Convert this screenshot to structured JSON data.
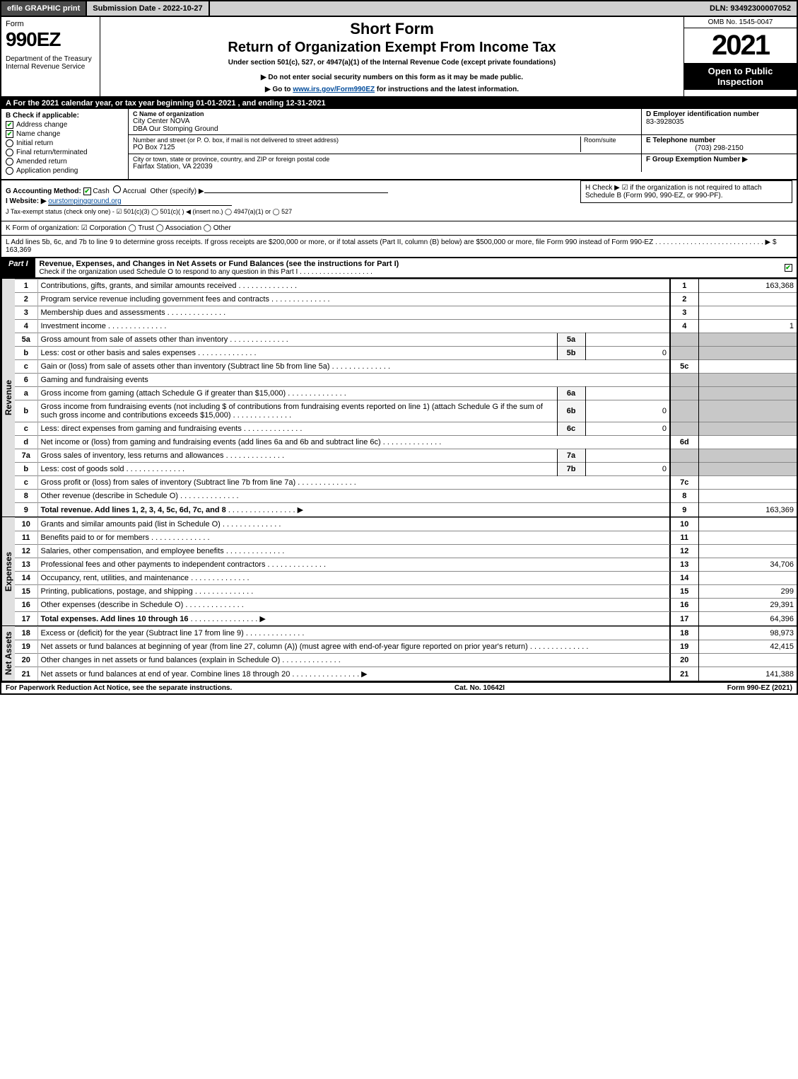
{
  "top": {
    "efile": "efile GRAPHIC print",
    "submission": "Submission Date - 2022-10-27",
    "dln": "DLN: 93492300007052"
  },
  "header": {
    "form_word": "Form",
    "form_num": "990EZ",
    "dept": "Department of the Treasury\nInternal Revenue Service",
    "title1": "Short Form",
    "title2": "Return of Organization Exempt From Income Tax",
    "sub": "Under section 501(c), 527, or 4947(a)(1) of the Internal Revenue Code (except private foundations)",
    "direct1": "▶ Do not enter social security numbers on this form as it may be made public.",
    "direct2_pre": "▶ Go to ",
    "direct2_link": "www.irs.gov/Form990EZ",
    "direct2_post": " for instructions and the latest information.",
    "omb": "OMB No. 1545-0047",
    "year": "2021",
    "inspection": "Open to Public Inspection"
  },
  "row_a": "A  For the 2021 calendar year, or tax year beginning 01-01-2021 , and ending 12-31-2021",
  "b": {
    "label": "B  Check if applicable:",
    "items": [
      {
        "text": "Address change",
        "checked": true
      },
      {
        "text": "Name change",
        "checked": true
      },
      {
        "text": "Initial return",
        "checked": false,
        "shape": "radio"
      },
      {
        "text": "Final return/terminated",
        "checked": false,
        "shape": "radio"
      },
      {
        "text": "Amended return",
        "checked": false,
        "shape": "radio"
      },
      {
        "text": "Application pending",
        "checked": false,
        "shape": "radio"
      }
    ]
  },
  "c": {
    "name_lbl": "C Name of organization",
    "name": "City Center NOVA",
    "dba": "DBA Our Stomping Ground",
    "street_lbl": "Number and street (or P. O. box, if mail is not delivered to street address)",
    "room_lbl": "Room/suite",
    "street": "PO Box 7125",
    "city_lbl": "City or town, state or province, country, and ZIP or foreign postal code",
    "city": "Fairfax Station, VA  22039"
  },
  "right_boxes": {
    "d_lbl": "D Employer identification number",
    "d_val": "83-3928035",
    "e_lbl": "E Telephone number",
    "e_val": "(703) 298-2150",
    "f_lbl": "F Group Exemption Number  ▶"
  },
  "g": {
    "label": "G Accounting Method:",
    "cash": "Cash",
    "accrual": "Accrual",
    "other": "Other (specify) ▶"
  },
  "h": "H  Check ▶ ☑ if the organization is not required to attach Schedule B (Form 990, 990-EZ, or 990-PF).",
  "i": {
    "label": "I Website: ▶",
    "val": "ourstompingground.org"
  },
  "j": "J Tax-exempt status (check only one) - ☑ 501(c)(3)  ◯ 501(c)(  ) ◀ (insert no.)  ◯ 4947(a)(1) or  ◯ 527",
  "k": "K Form of organization:  ☑ Corporation  ◯ Trust  ◯ Association  ◯ Other",
  "l": {
    "text": "L Add lines 5b, 6c, and 7b to line 9 to determine gross receipts. If gross receipts are $200,000 or more, or if total assets (Part II, column (B) below) are $500,000 or more, file Form 990 instead of Form 990-EZ  .  .  .  .  .  .  .  .  .  .  .  .  .  .  .  .  .  .  .  .  .  .  .  .  .  .  .  . ▶ $",
    "val": "163,369"
  },
  "part1": {
    "tag": "Part I",
    "title": "Revenue, Expenses, and Changes in Net Assets or Fund Balances (see the instructions for Part I)",
    "sub": "Check if the organization used Schedule O to respond to any question in this Part I  .  .  .  .  .  .  .  .  .  .  .  .  .  .  .  .  .  .  ."
  },
  "side": {
    "rev": "Revenue",
    "exp": "Expenses",
    "net": "Net Assets"
  },
  "rev": [
    {
      "n": "1",
      "d": "Contributions, gifts, grants, and similar amounts received",
      "rn": "1",
      "rv": "163,368"
    },
    {
      "n": "2",
      "d": "Program service revenue including government fees and contracts",
      "rn": "2",
      "rv": ""
    },
    {
      "n": "3",
      "d": "Membership dues and assessments",
      "rn": "3",
      "rv": ""
    },
    {
      "n": "4",
      "d": "Investment income",
      "rn": "4",
      "rv": "1"
    },
    {
      "n": "5a",
      "d": "Gross amount from sale of assets other than inventory",
      "mn": "5a",
      "mv": ""
    },
    {
      "n": "b",
      "d": "Less: cost or other basis and sales expenses",
      "mn": "5b",
      "mv": "0"
    },
    {
      "n": "c",
      "d": "Gain or (loss) from sale of assets other than inventory (Subtract line 5b from line 5a)",
      "rn": "5c",
      "rv": ""
    },
    {
      "n": "6",
      "d": "Gaming and fundraising events"
    },
    {
      "n": "a",
      "d": "Gross income from gaming (attach Schedule G if greater than $15,000)",
      "mn": "6a",
      "mv": ""
    },
    {
      "n": "b",
      "d": "Gross income from fundraising events (not including $                    of contributions from fundraising events reported on line 1) (attach Schedule G if the sum of such gross income and contributions exceeds $15,000)",
      "mn": "6b",
      "mv": "0"
    },
    {
      "n": "c",
      "d": "Less: direct expenses from gaming and fundraising events",
      "mn": "6c",
      "mv": "0"
    },
    {
      "n": "d",
      "d": "Net income or (loss) from gaming and fundraising events (add lines 6a and 6b and subtract line 6c)",
      "rn": "6d",
      "rv": ""
    },
    {
      "n": "7a",
      "d": "Gross sales of inventory, less returns and allowances",
      "mn": "7a",
      "mv": ""
    },
    {
      "n": "b",
      "d": "Less: cost of goods sold",
      "mn": "7b",
      "mv": "0"
    },
    {
      "n": "c",
      "d": "Gross profit or (loss) from sales of inventory (Subtract line 7b from line 7a)",
      "rn": "7c",
      "rv": ""
    },
    {
      "n": "8",
      "d": "Other revenue (describe in Schedule O)",
      "rn": "8",
      "rv": ""
    },
    {
      "n": "9",
      "d": "Total revenue. Add lines 1, 2, 3, 4, 5c, 6d, 7c, and 8",
      "rn": "9",
      "rv": "163,369",
      "bold": true,
      "arrow": true
    }
  ],
  "exp": [
    {
      "n": "10",
      "d": "Grants and similar amounts paid (list in Schedule O)",
      "rn": "10",
      "rv": ""
    },
    {
      "n": "11",
      "d": "Benefits paid to or for members",
      "rn": "11",
      "rv": ""
    },
    {
      "n": "12",
      "d": "Salaries, other compensation, and employee benefits",
      "rn": "12",
      "rv": ""
    },
    {
      "n": "13",
      "d": "Professional fees and other payments to independent contractors",
      "rn": "13",
      "rv": "34,706"
    },
    {
      "n": "14",
      "d": "Occupancy, rent, utilities, and maintenance",
      "rn": "14",
      "rv": ""
    },
    {
      "n": "15",
      "d": "Printing, publications, postage, and shipping",
      "rn": "15",
      "rv": "299"
    },
    {
      "n": "16",
      "d": "Other expenses (describe in Schedule O)",
      "rn": "16",
      "rv": "29,391"
    },
    {
      "n": "17",
      "d": "Total expenses. Add lines 10 through 16",
      "rn": "17",
      "rv": "64,396",
      "bold": true,
      "arrow": true
    }
  ],
  "net": [
    {
      "n": "18",
      "d": "Excess or (deficit) for the year (Subtract line 17 from line 9)",
      "rn": "18",
      "rv": "98,973"
    },
    {
      "n": "19",
      "d": "Net assets or fund balances at beginning of year (from line 27, column (A)) (must agree with end-of-year figure reported on prior year's return)",
      "rn": "19",
      "rv": "42,415"
    },
    {
      "n": "20",
      "d": "Other changes in net assets or fund balances (explain in Schedule O)",
      "rn": "20",
      "rv": ""
    },
    {
      "n": "21",
      "d": "Net assets or fund balances at end of year. Combine lines 18 through 20",
      "rn": "21",
      "rv": "141,388",
      "arrow": true
    }
  ],
  "footer": {
    "left": "For Paperwork Reduction Act Notice, see the separate instructions.",
    "mid": "Cat. No. 10642I",
    "right": "Form 990-EZ (2021)"
  }
}
